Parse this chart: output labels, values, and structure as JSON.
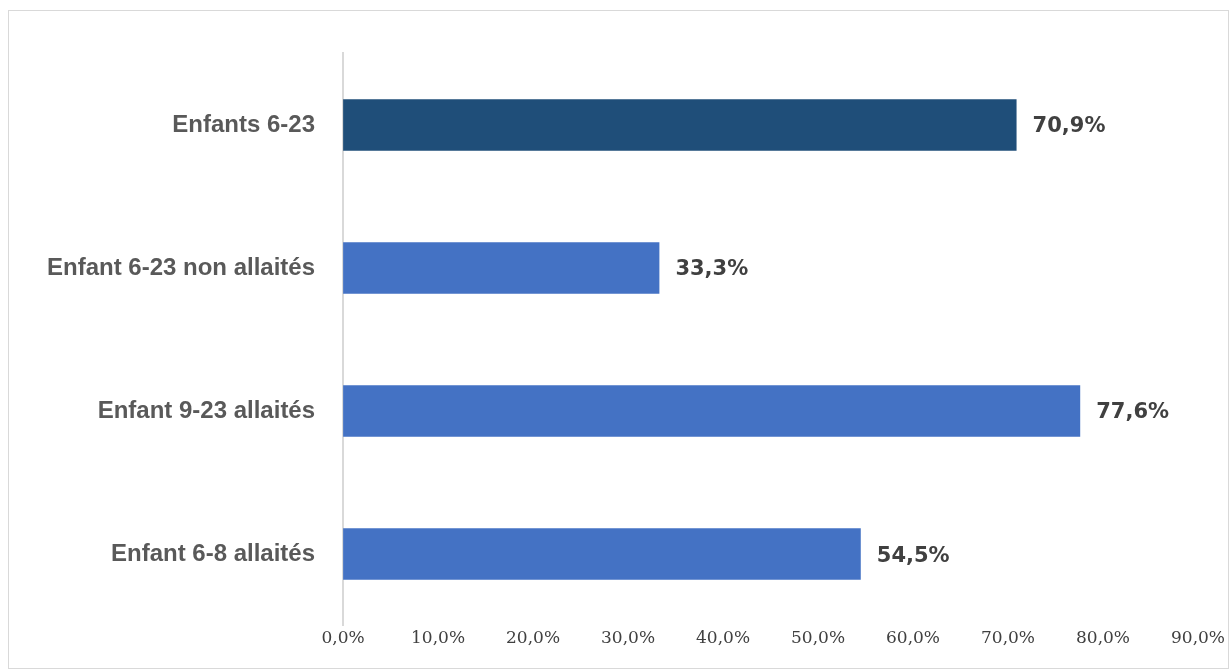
{
  "chart_data": {
    "type": "bar",
    "orientation": "horizontal",
    "categories": [
      "Enfants 6-23",
      "Enfant 6-23 non allaités",
      "Enfant 9-23 allaités",
      "Enfant 6-8 allaités"
    ],
    "values": [
      70.9,
      33.3,
      77.6,
      54.5
    ],
    "colors": [
      "#1f4e79",
      "#4472c4",
      "#4472c4",
      "#4472c4"
    ],
    "value_labels": [
      "70,9%",
      "33,3%",
      "77,6%",
      "54,5%"
    ],
    "xlim": [
      0,
      90
    ],
    "xticks": [
      {
        "value": 0,
        "label": "0,0%"
      },
      {
        "value": 10,
        "label": "10,0%"
      },
      {
        "value": 20,
        "label": "20,0%"
      },
      {
        "value": 30,
        "label": "30,0%"
      },
      {
        "value": 40,
        "label": "40,0%"
      },
      {
        "value": 50,
        "label": "50,0%"
      },
      {
        "value": 60,
        "label": "60,0%"
      },
      {
        "value": 70,
        "label": "70,0%"
      },
      {
        "value": 80,
        "label": "80,0%"
      },
      {
        "value": 90,
        "label": "90,0%"
      }
    ],
    "grid": false,
    "legend": false
  }
}
